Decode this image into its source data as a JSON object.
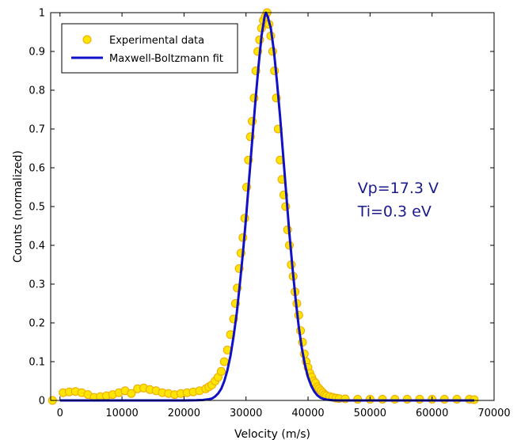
{
  "chart_data": {
    "type": "scatter",
    "title": "",
    "xlabel": "Velocity (m/s)",
    "ylabel": "Counts (normalized)",
    "xlim": [
      -1500,
      70000
    ],
    "ylim": [
      0,
      1
    ],
    "xticks": [
      0,
      10000,
      20000,
      30000,
      40000,
      50000,
      60000,
      70000
    ],
    "yticks": [
      0,
      0.1,
      0.2,
      0.3,
      0.4,
      0.5,
      0.6,
      0.7,
      0.8,
      0.9,
      1
    ],
    "ytick_labels": [
      "0",
      "0.1",
      "0.2",
      "0.3",
      "0.4",
      "0.5",
      "0.6",
      "0.7",
      "0.8",
      "0.9",
      "1"
    ],
    "grid": false,
    "legend_position": "top-left",
    "series": [
      {
        "name": "Experimental data",
        "kind": "scatter",
        "color": "#FFE600",
        "edge_color": "#F0A800",
        "x": [
          -1200,
          500,
          1500,
          2500,
          3500,
          4500,
          5500,
          6500,
          7500,
          8500,
          9500,
          10500,
          11500,
          12500,
          13500,
          14500,
          15500,
          16500,
          17500,
          18500,
          19500,
          20500,
          21500,
          22500,
          23500,
          24000,
          24500,
          25000,
          25500,
          26000,
          26500,
          27000,
          27500,
          28000,
          28300,
          28600,
          28900,
          29200,
          29500,
          29800,
          30100,
          30400,
          30700,
          31000,
          31300,
          31600,
          31900,
          32200,
          32500,
          32800,
          33100,
          33400,
          33700,
          34000,
          34300,
          34600,
          34900,
          35200,
          35500,
          35800,
          36100,
          36400,
          36700,
          37000,
          37300,
          37600,
          37900,
          38200,
          38500,
          38800,
          39100,
          39400,
          39700,
          40000,
          40300,
          40600,
          40900,
          41200,
          41500,
          41800,
          42100,
          42400,
          42700,
          43000,
          43500,
          44000,
          44500,
          45000,
          46000,
          48000,
          50000,
          52000,
          54000,
          56000,
          58000,
          60000,
          62000,
          64000,
          66000,
          66800
        ],
        "y": [
          0.0,
          0.02,
          0.022,
          0.023,
          0.02,
          0.015,
          0.008,
          0.01,
          0.012,
          0.015,
          0.02,
          0.025,
          0.018,
          0.03,
          0.032,
          0.028,
          0.025,
          0.02,
          0.018,
          0.015,
          0.018,
          0.02,
          0.022,
          0.025,
          0.03,
          0.035,
          0.04,
          0.05,
          0.06,
          0.075,
          0.1,
          0.13,
          0.17,
          0.21,
          0.25,
          0.29,
          0.34,
          0.38,
          0.42,
          0.47,
          0.55,
          0.62,
          0.68,
          0.72,
          0.78,
          0.85,
          0.9,
          0.93,
          0.96,
          0.98,
          0.99,
          1.0,
          0.97,
          0.94,
          0.9,
          0.85,
          0.78,
          0.7,
          0.62,
          0.57,
          0.53,
          0.5,
          0.44,
          0.4,
          0.35,
          0.32,
          0.28,
          0.25,
          0.22,
          0.18,
          0.15,
          0.12,
          0.1,
          0.085,
          0.07,
          0.06,
          0.05,
          0.045,
          0.035,
          0.03,
          0.025,
          0.02,
          0.015,
          0.012,
          0.01,
          0.008,
          0.006,
          0.005,
          0.004,
          0.003,
          0.003,
          0.003,
          0.003,
          0.003,
          0.003,
          0.003,
          0.003,
          0.003,
          0.003,
          0.002
        ]
      },
      {
        "name": "Maxwell-Boltzmann fit",
        "kind": "line",
        "color": "#1010C8",
        "x": [
          0,
          5000,
          10000,
          15000,
          20000,
          22000,
          23000,
          24000,
          24500,
          25000,
          25500,
          26000,
          26500,
          27000,
          27500,
          28000,
          28500,
          29000,
          29500,
          30000,
          30500,
          31000,
          31500,
          32000,
          32500,
          33000,
          33200,
          33500,
          34000,
          34500,
          35000,
          35500,
          36000,
          36500,
          37000,
          37500,
          38000,
          38500,
          39000,
          39500,
          40000,
          40500,
          41000,
          41500,
          42000,
          42500,
          43000,
          44000,
          45000,
          46000,
          50000,
          55000,
          60000,
          65000,
          66800
        ],
        "y": [
          0,
          0,
          0,
          0,
          0,
          0.0005,
          0.001,
          0.003,
          0.005,
          0.01,
          0.018,
          0.03,
          0.05,
          0.078,
          0.115,
          0.165,
          0.225,
          0.3,
          0.38,
          0.47,
          0.57,
          0.67,
          0.77,
          0.86,
          0.94,
          0.99,
          1.0,
          0.99,
          0.96,
          0.9,
          0.82,
          0.73,
          0.63,
          0.53,
          0.43,
          0.34,
          0.26,
          0.19,
          0.135,
          0.092,
          0.06,
          0.038,
          0.023,
          0.013,
          0.007,
          0.004,
          0.002,
          0.0005,
          0,
          0,
          0,
          0,
          0,
          0,
          0
        ]
      }
    ],
    "annotations": [
      {
        "text": "Vp=17.3 V",
        "color": "#1A1A8C",
        "at": [
          48000,
          0.535
        ]
      },
      {
        "text": "Ti=0.3 eV",
        "color": "#1A1A8C",
        "at": [
          48000,
          0.475
        ]
      }
    ]
  }
}
